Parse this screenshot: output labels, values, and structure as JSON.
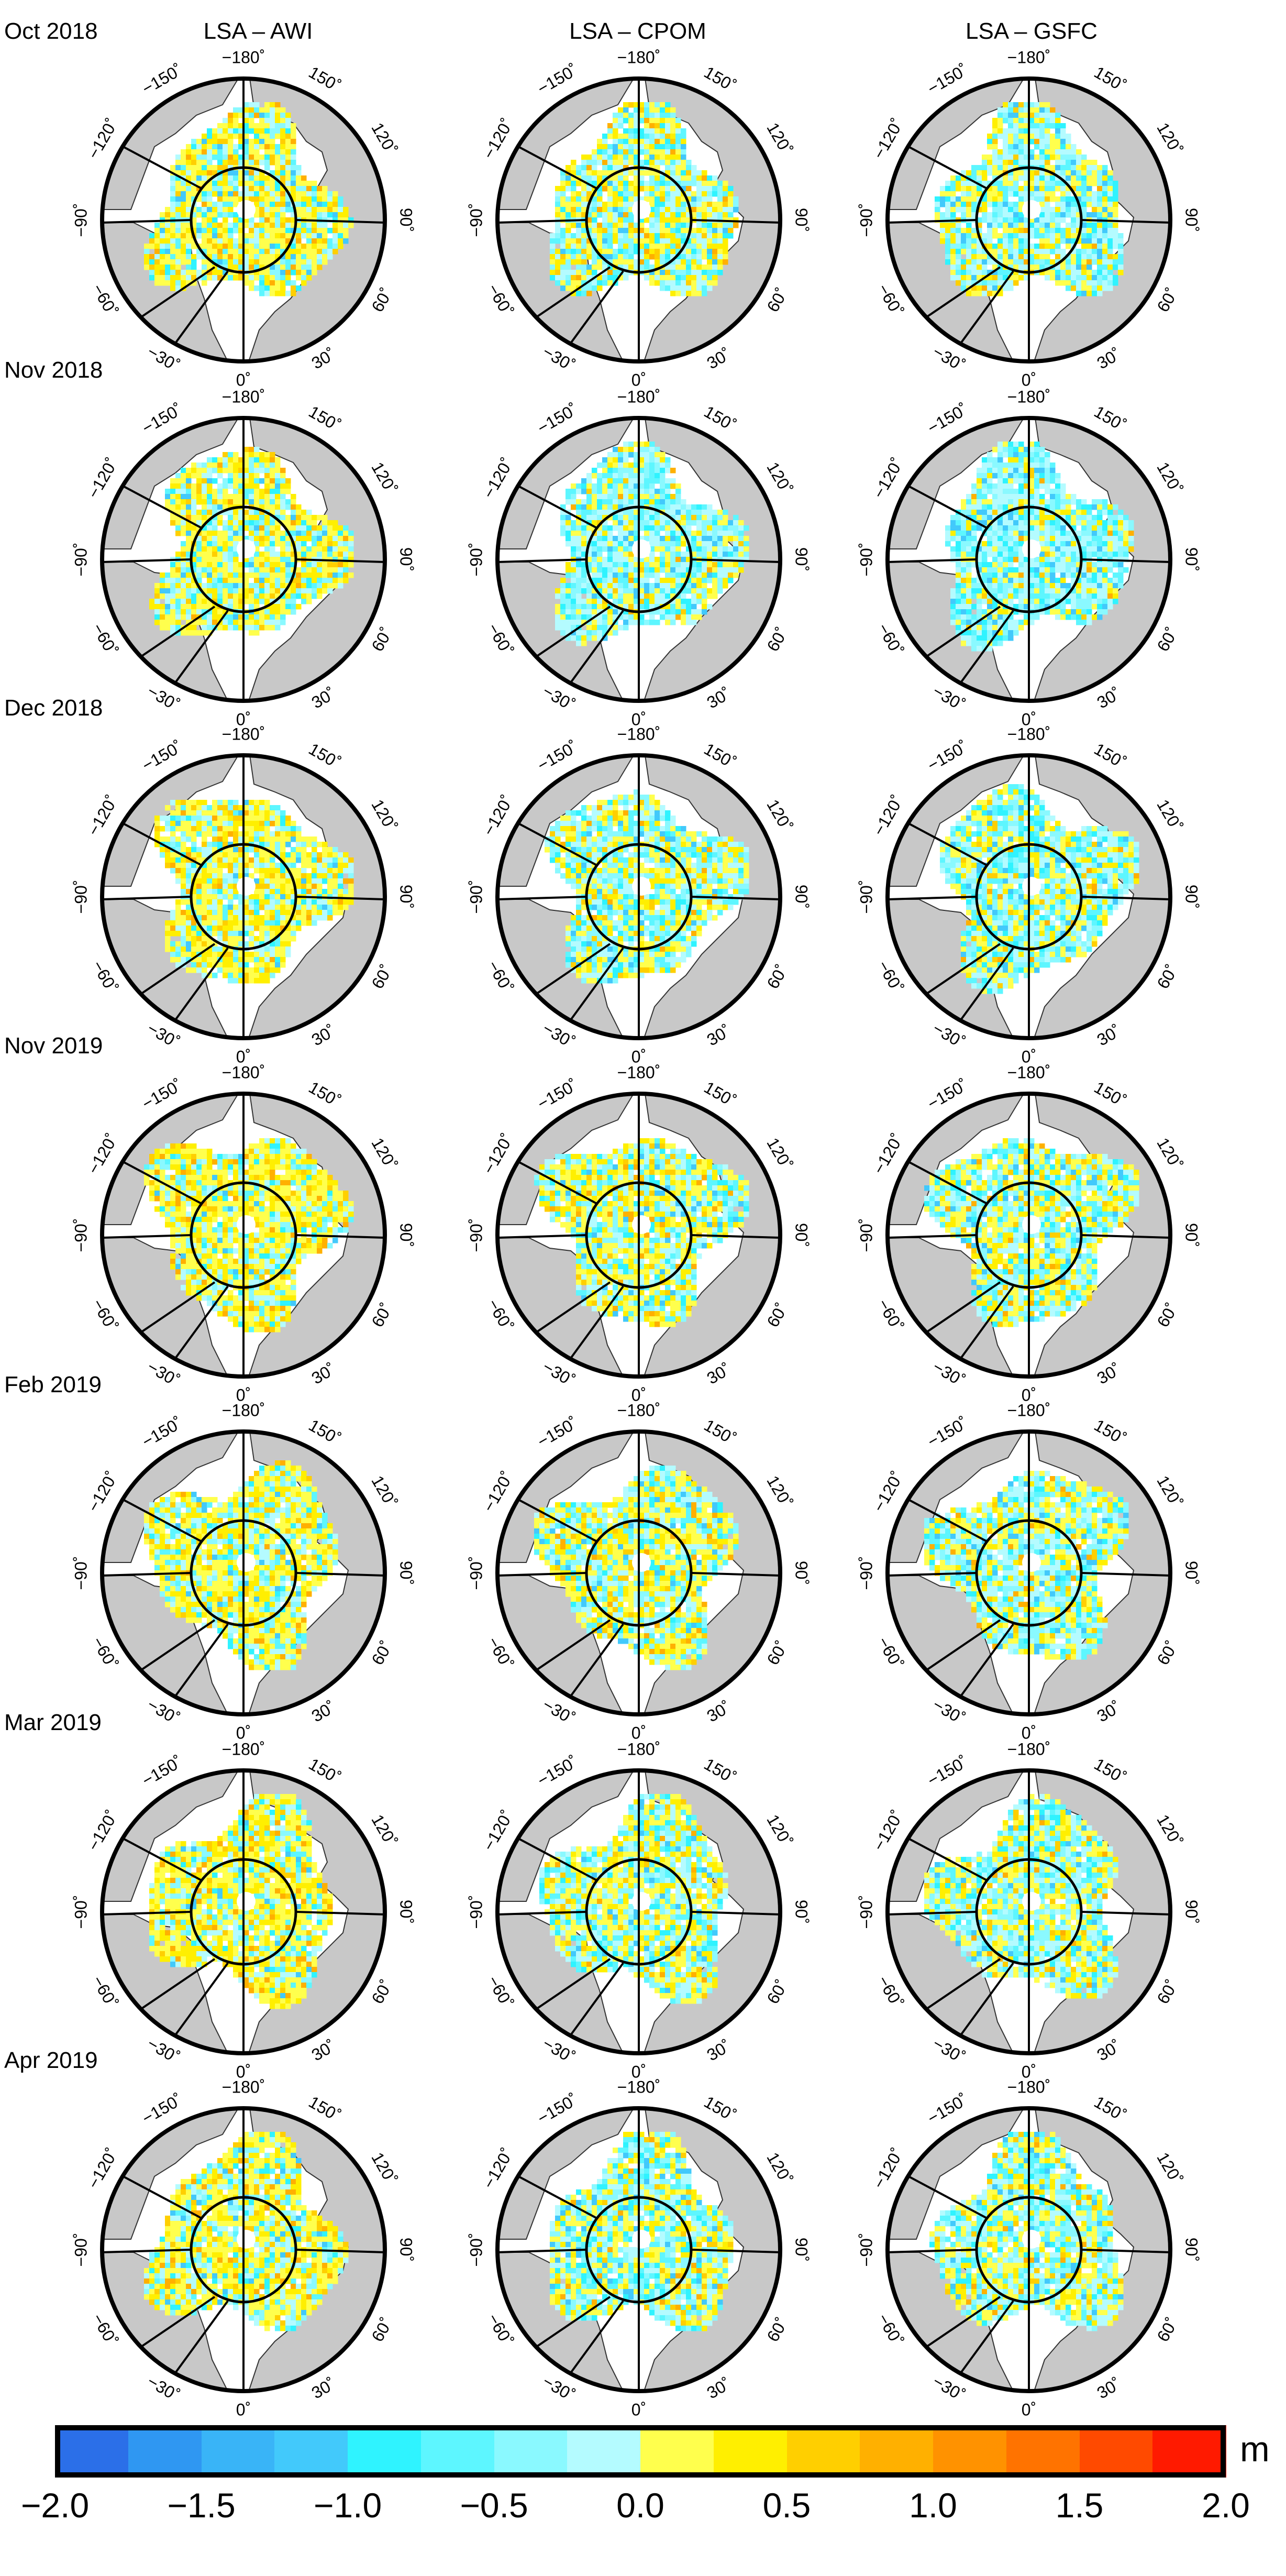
{
  "figure": {
    "column_titles": [
      "LSA – AWI",
      "LSA – CPOM",
      "LSA – GSFC"
    ],
    "row_labels": [
      "Oct 2018",
      "Nov 2018",
      "Dec 2018",
      "Nov 2019",
      "Feb 2019",
      "Mar 2019",
      "Apr 2019"
    ],
    "longitude_labels": [
      "−180˚",
      "150˚",
      "120˚",
      "90˚",
      "60˚",
      "30˚",
      "0˚",
      "−30˚",
      "−60˚",
      "−90˚",
      "−120˚",
      "−150˚"
    ],
    "map_colors": {
      "ocean": "#ffffff",
      "land": "#c8c8c8",
      "coast": "#333333",
      "frame": "#000000"
    }
  },
  "colorbar": {
    "unit": "m",
    "range": [
      -2.0,
      2.0
    ],
    "tick_labels": [
      "−2.0",
      "−1.5",
      "−1.0",
      "−0.5",
      "0.0",
      "0.5",
      "1.0",
      "1.5",
      "2.0"
    ],
    "tick_values": [
      -2.0,
      -1.5,
      -1.0,
      -0.5,
      0.0,
      0.5,
      1.0,
      1.5,
      2.0
    ],
    "colors": [
      "#2b6fe8",
      "#2f97f2",
      "#39b4f7",
      "#42c9fb",
      "#2ff3ff",
      "#5df6ff",
      "#8af9ff",
      "#b4fbff",
      "#ffff4d",
      "#ffef00",
      "#ffcf00",
      "#ffb000",
      "#ff9200",
      "#ff7300",
      "#ff4a00",
      "#ff1a00"
    ]
  }
}
